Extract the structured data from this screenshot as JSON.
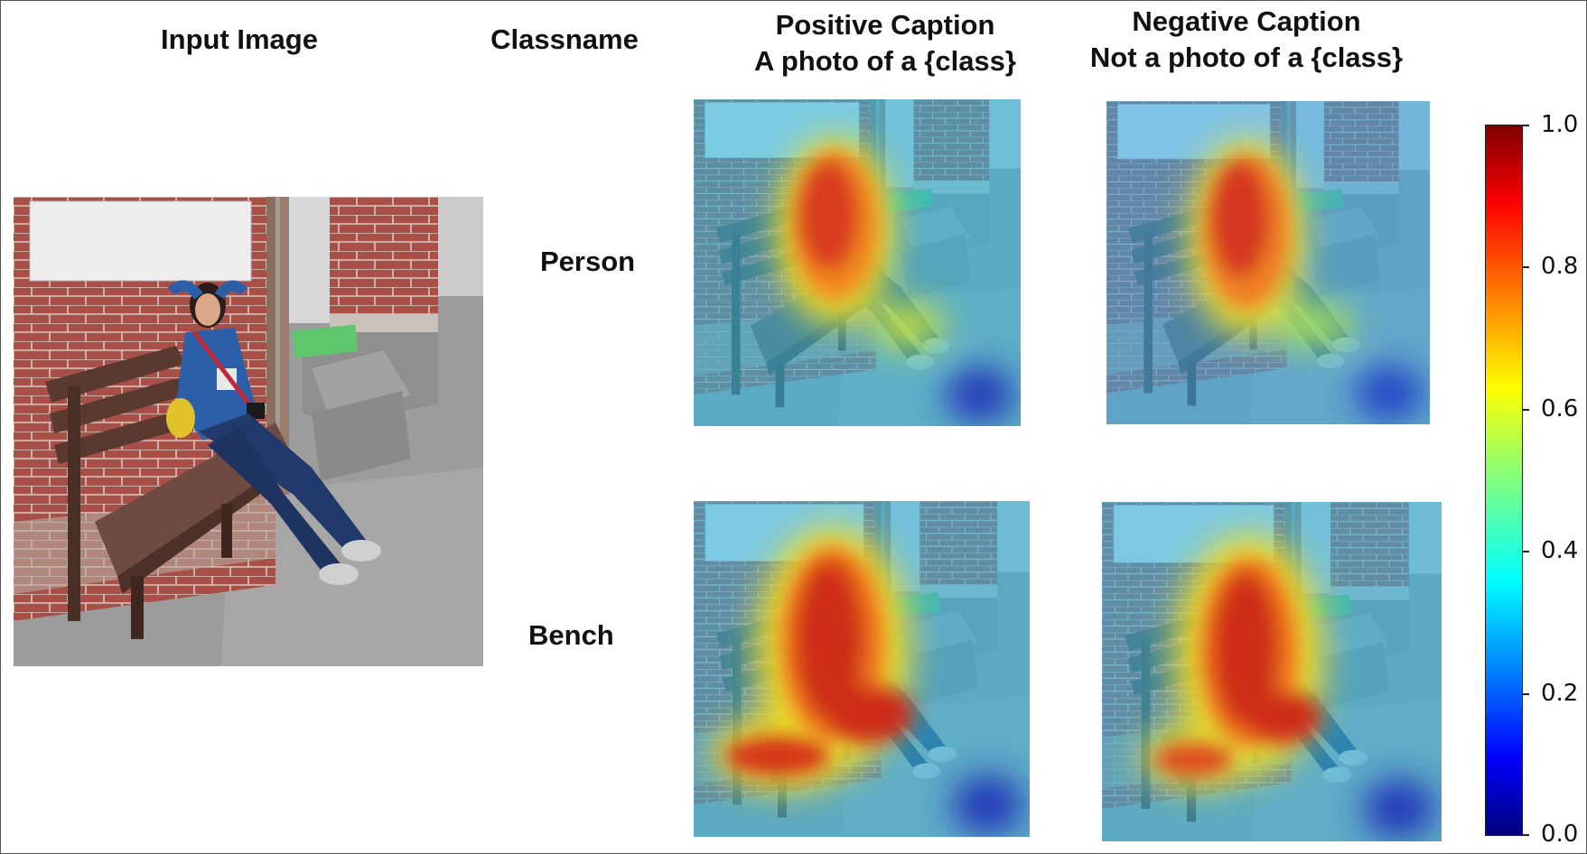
{
  "headers": {
    "input_image": "Input Image",
    "classname": "Classname",
    "positive_caption": [
      "Positive Caption",
      "A photo of a {class}"
    ],
    "negative_caption": [
      "Negative Caption",
      "Not a photo of a {class}"
    ]
  },
  "rows": [
    {
      "classname": "Person"
    },
    {
      "classname": "Bench"
    }
  ],
  "colorbar": {
    "colormap": "jet",
    "ticks": [
      "1.0",
      "0.8",
      "0.6",
      "0.4",
      "0.2",
      "0.0"
    ],
    "range": [
      0.0,
      1.0
    ]
  },
  "colors": {
    "brick": "#a85048",
    "wall_light": "#eeeeee",
    "pavement": "#9c9c9c",
    "shirt": "#2d5fa8",
    "jeans": "#223a6b"
  }
}
